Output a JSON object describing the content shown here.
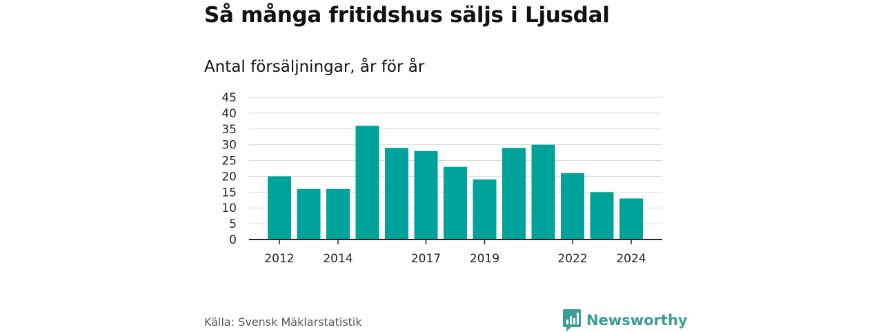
{
  "header": {
    "title": "Så många fritidshus säljs i Ljusdal",
    "subtitle": "Antal försäljningar, år för år"
  },
  "footer": {
    "source": "Källa: Svensk Mäklarstatistik",
    "brand": "Newsworthy"
  },
  "colors": {
    "bar": "#00a39a",
    "grid": "#d9d9d9",
    "axis": "#222222",
    "brand": "#3a9e96"
  },
  "icons": {
    "brand_logo": "bar-chart-speech-bubble-icon"
  },
  "chart_data": {
    "type": "bar",
    "title": "Så många fritidshus säljs i Ljusdal",
    "subtitle": "Antal försäljningar, år för år",
    "xlabel": "",
    "ylabel": "",
    "categories": [
      "2012",
      "2013",
      "2014",
      "2015",
      "2016",
      "2017",
      "2018",
      "2019",
      "2020",
      "2021",
      "2022",
      "2023",
      "2024"
    ],
    "values": [
      20,
      16,
      16,
      36,
      29,
      28,
      23,
      19,
      29,
      30,
      21,
      15,
      13
    ],
    "x_tick_labels": [
      "2012",
      "2014",
      "2017",
      "2019",
      "2022",
      "2024"
    ],
    "y_ticks": [
      0,
      5,
      10,
      15,
      20,
      25,
      30,
      35,
      40,
      45
    ],
    "ylim": [
      0,
      45
    ],
    "grid": true
  }
}
